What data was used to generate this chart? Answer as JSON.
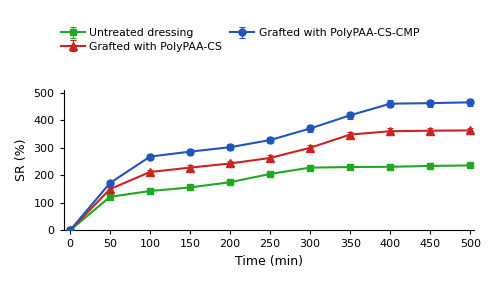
{
  "time": [
    0,
    50,
    100,
    150,
    200,
    250,
    300,
    350,
    400,
    450,
    500
  ],
  "untreated": [
    0,
    122,
    143,
    156,
    175,
    205,
    228,
    230,
    231,
    234,
    236
  ],
  "untreated_err": [
    0,
    5,
    5,
    5,
    6,
    6,
    6,
    6,
    6,
    6,
    6
  ],
  "polyPAA_CS": [
    0,
    150,
    212,
    228,
    243,
    263,
    300,
    348,
    360,
    362,
    363
  ],
  "polyPAA_CS_err": [
    0,
    6,
    8,
    8,
    8,
    9,
    10,
    10,
    10,
    10,
    10
  ],
  "polyPAA_CS_CMP": [
    0,
    172,
    268,
    286,
    302,
    328,
    370,
    418,
    460,
    462,
    465
  ],
  "polyPAA_CS_CMP_err": [
    0,
    7,
    9,
    9,
    10,
    10,
    12,
    13,
    13,
    13,
    13
  ],
  "color_untreated": "#22a722",
  "color_polyPAA_CS": "#cc2222",
  "color_polyPAA_CS_CMP": "#2255bb",
  "label_untreated": "Untreated dressing",
  "label_polyPAA_CS": "Grafted with PolyPAA-CS",
  "label_polyPAA_CS_CMP": "Grafted with PolyPAA-CS-CMP",
  "xlabel": "Time (min)",
  "ylabel": "SR (%)",
  "xlim": [
    0,
    505
  ],
  "ylim": [
    0,
    510
  ],
  "yticks": [
    0,
    100,
    200,
    300,
    400,
    500
  ],
  "xticks": [
    0,
    50,
    100,
    150,
    200,
    250,
    300,
    350,
    400,
    450,
    500
  ]
}
